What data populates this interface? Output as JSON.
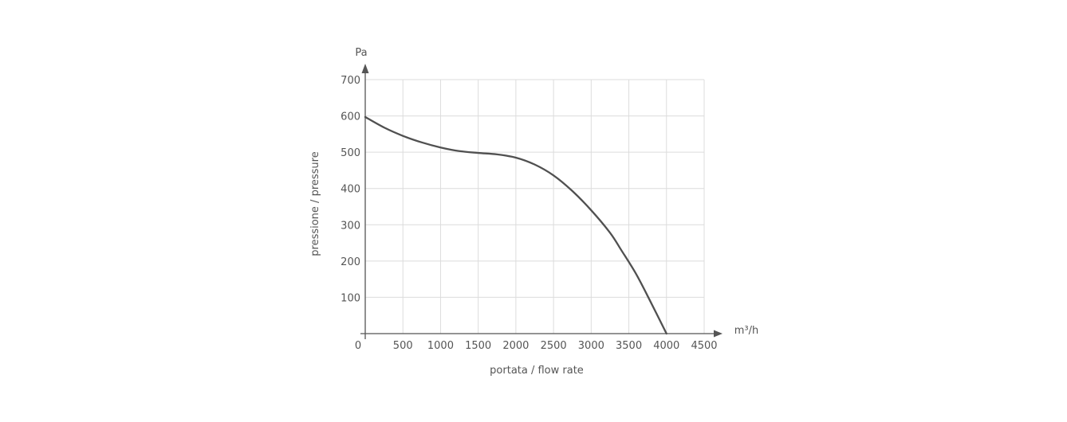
{
  "chart_data": {
    "type": "line",
    "xlabel": "portata / flow rate",
    "ylabel": "pressione / pressure",
    "x_unit": "m³/h",
    "y_unit": "Pa",
    "xlim": [
      0,
      4500
    ],
    "ylim": [
      0,
      700
    ],
    "x_ticks": [
      "0",
      "500",
      "1000",
      "1500",
      "2000",
      "2500",
      "3000",
      "3500",
      "4000",
      "4500"
    ],
    "y_ticks": [
      "100",
      "200",
      "300",
      "400",
      "500",
      "600",
      "700"
    ],
    "grid": true,
    "series": [
      {
        "color": "#505050",
        "x": [
          0,
          250,
          500,
          750,
          1000,
          1250,
          1500,
          1750,
          2000,
          2250,
          2500,
          2750,
          3000,
          3250,
          3400,
          3600,
          3800,
          4000
        ],
        "y": [
          597,
          568,
          545,
          527,
          513,
          503,
          498,
          494,
          485,
          466,
          436,
          393,
          340,
          278,
          230,
          163,
          83,
          0
        ]
      }
    ]
  }
}
